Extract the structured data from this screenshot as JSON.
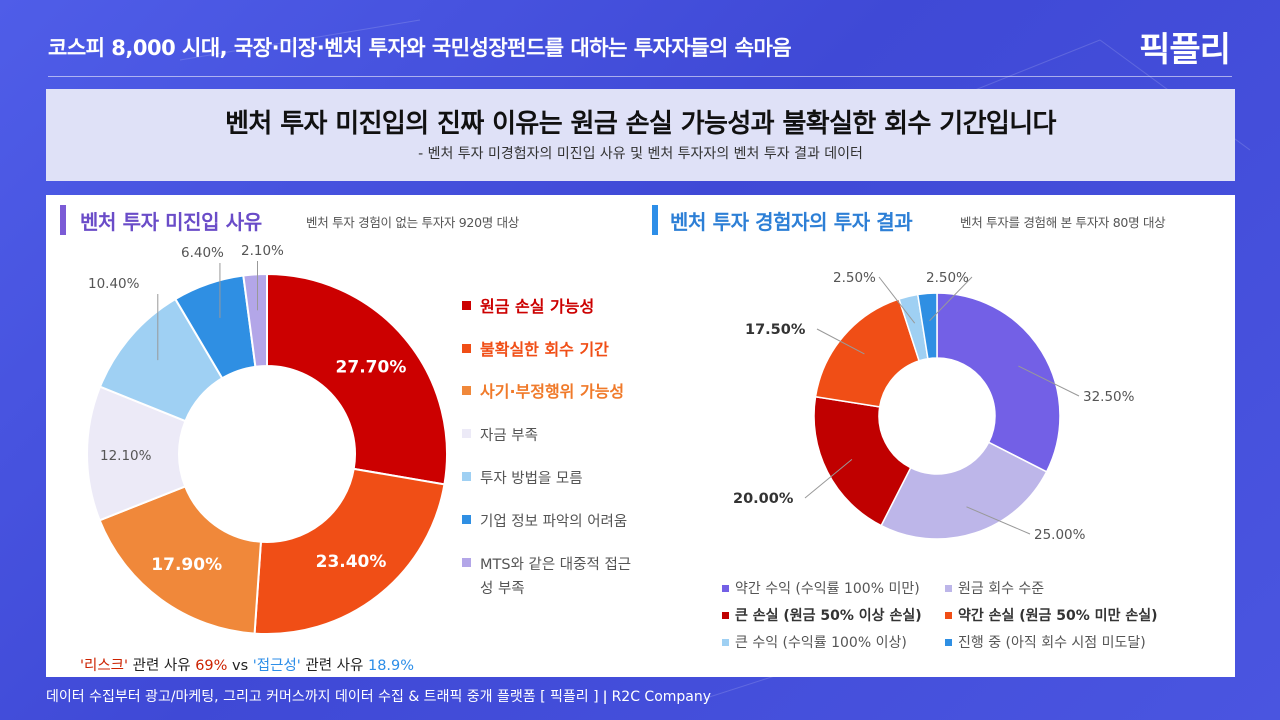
{
  "header": {
    "title": "코스피 8,000 시대, 국장·미장·벤처 투자와 국민성장펀드를 대하는 투자자들의 속마음",
    "logo": "픽플리"
  },
  "headline": {
    "title": "벤처 투자 미진입의 진짜 이유는 원금 손실 가능성과 불확실한 회수 기간입니다",
    "subtitle": "- 벤처 투자 미경험자의 미진입 사유 및 벤처 투자자의 벤처 투자 결과 데이터"
  },
  "left_section": {
    "title": "벤처 투자 미진입 사유",
    "note": "벤처 투자 경험이 없는 투자자 920명 대상",
    "accent": "#7b5bd6"
  },
  "right_section": {
    "title": "벤처 투자 경험자의 투자 결과",
    "note": "벤처 투자를 경험해 본 투자자 80명 대상",
    "accent": "#2d8ee8"
  },
  "footnote": {
    "q1": "'리스크'",
    "t1": " 관련 사유 ",
    "v1": "69%",
    "vs": " vs ",
    "q2": "'접근성'",
    "t2": " 관련 사유 ",
    "v2": "18.9%"
  },
  "bottom_bar": "데이터 수집부터 광고/마케팅, 그리고 커머스까지 데이터 수집 & 트래픽 중개 플랫폼 [ 픽플리 ]  ǀ  R2C Company",
  "chart_data": [
    {
      "type": "pie",
      "title": "벤처 투자 미진입 사유",
      "categories": [
        "원금 손실 가능성",
        "불확실한 회수 기간",
        "사기·부정행위 가능성",
        "자금 부족",
        "투자 방법을 모름",
        "기업 정보 파악의 어려움",
        "MTS와 같은 대중적 접근성 부족"
      ],
      "values": [
        27.7,
        23.4,
        17.9,
        12.1,
        10.4,
        6.4,
        2.1
      ],
      "labels": [
        "27.70%",
        "23.40%",
        "17.90%",
        "12.10%",
        "10.40%",
        "6.40%",
        "2.10%"
      ],
      "colors": [
        "#cc0000",
        "#f04e16",
        "#f0883a",
        "#eceaf7",
        "#9fd0f3",
        "#2f8fe3",
        "#b3a6e8"
      ],
      "legend_position": "right"
    },
    {
      "type": "pie",
      "title": "벤처 투자 경험자의 투자 결과",
      "categories": [
        "약간 수익 (수익률 100% 미만)",
        "원금 회수 수준",
        "큰 손실 (원금 50% 이상 손실)",
        "약간 손실 (원금 50% 미만 손실)",
        "큰 수익 (수익률 100% 이상)",
        "진행 중 (아직 회수 시점 미도달)"
      ],
      "values": [
        32.5,
        25.0,
        20.0,
        17.5,
        2.5,
        2.5
      ],
      "labels": [
        "32.50%",
        "25.00%",
        "20.00%",
        "17.50%",
        "2.50%",
        "2.50%"
      ],
      "colors": [
        "#7360e6",
        "#bdb6e9",
        "#c00000",
        "#f04e16",
        "#9fd0f3",
        "#2f8fe3"
      ],
      "legend_position": "bottom"
    }
  ]
}
